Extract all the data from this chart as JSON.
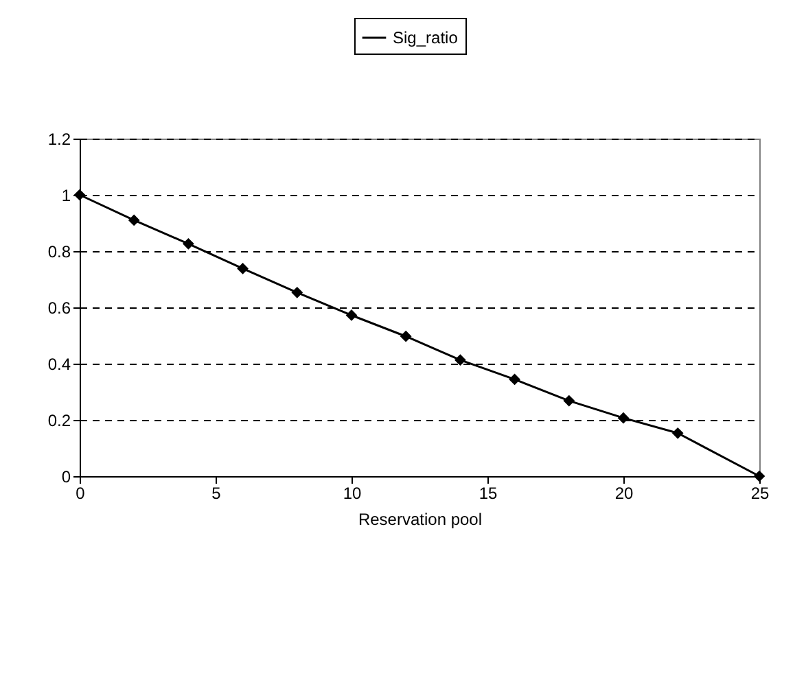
{
  "chart_data": {
    "type": "line",
    "xlabel": "Reservation pool",
    "x": [
      0,
      2,
      4,
      6,
      8,
      10,
      12,
      14,
      16,
      18,
      20,
      22,
      25
    ],
    "series": [
      {
        "name": "Sig_ratio",
        "color": "#000000",
        "values": [
          1,
          0.91,
          0.826,
          0.738,
          0.653,
          0.572,
          0.497,
          0.413,
          0.344,
          0.268,
          0.207,
          0.153,
          0
        ]
      }
    ],
    "xlim": [
      0,
      25
    ],
    "xticks": [
      0,
      5,
      10,
      15,
      20,
      25
    ],
    "ylim": [
      0,
      1.2
    ],
    "yticks": [
      0,
      0.2,
      0.4,
      0.6,
      0.8,
      1,
      1.2
    ],
    "grid": "y",
    "legend": "top",
    "marker": "diamond",
    "line_style": "solid"
  }
}
